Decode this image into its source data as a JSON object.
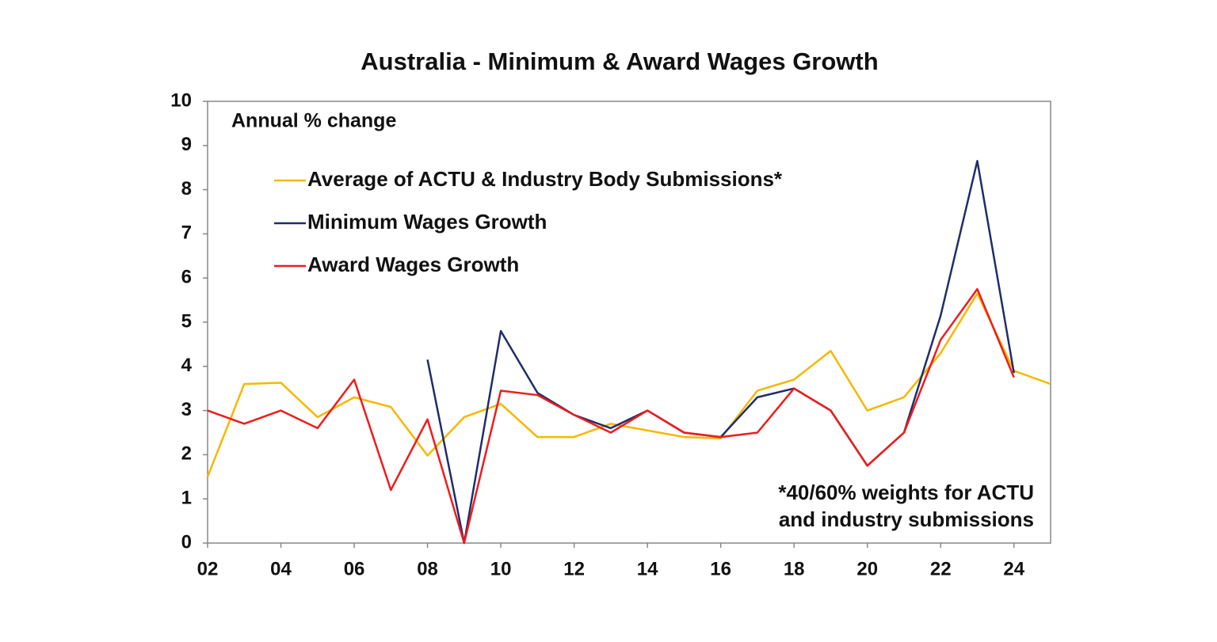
{
  "chart_data": {
    "type": "line",
    "title": "Australia - Minimum & Award Wages Growth",
    "ylabel": "Annual % change",
    "annotation": [
      "*40/60% weights for ACTU",
      "and industry submissions"
    ],
    "x": [
      2,
      3,
      4,
      5,
      6,
      7,
      8,
      9,
      10,
      11,
      12,
      13,
      14,
      15,
      16,
      17,
      18,
      19,
      20,
      21,
      22,
      23,
      24,
      25
    ],
    "series": [
      {
        "name": "Average of ACTU & Industry Body Submissions*",
        "color": "#f5b800",
        "values": [
          1.5,
          3.6,
          3.63,
          2.85,
          3.3,
          3.08,
          1.98,
          2.85,
          3.15,
          2.4,
          2.4,
          2.7,
          2.55,
          2.4,
          2.37,
          3.45,
          3.7,
          4.35,
          3.0,
          3.3,
          4.3,
          5.65,
          3.9,
          3.6
        ]
      },
      {
        "name": "Minimum Wages Growth",
        "color": "#1f2d6b",
        "values": [
          null,
          null,
          null,
          null,
          null,
          null,
          4.15,
          0,
          4.8,
          3.4,
          2.9,
          2.6,
          3.0,
          2.5,
          2.4,
          3.3,
          3.5,
          3.0,
          1.75,
          2.5,
          5.15,
          8.65,
          3.85,
          null
        ]
      },
      {
        "name": "Award Wages Growth",
        "color": "#ee1c1c",
        "values": [
          3.0,
          2.7,
          3.0,
          2.6,
          3.7,
          1.2,
          2.8,
          0,
          3.45,
          3.35,
          2.9,
          2.5,
          3.0,
          2.5,
          2.4,
          2.5,
          3.5,
          3.0,
          1.75,
          2.5,
          4.6,
          5.75,
          3.75,
          null
        ]
      }
    ],
    "xlim": [
      2,
      25
    ],
    "ylim": [
      0,
      10
    ],
    "xticks": [
      {
        "value": 2,
        "label": "02"
      },
      {
        "value": 4,
        "label": "04"
      },
      {
        "value": 6,
        "label": "06"
      },
      {
        "value": 8,
        "label": "08"
      },
      {
        "value": 10,
        "label": "10"
      },
      {
        "value": 12,
        "label": "12"
      },
      {
        "value": 14,
        "label": "14"
      },
      {
        "value": 16,
        "label": "16"
      },
      {
        "value": 18,
        "label": "18"
      },
      {
        "value": 20,
        "label": "20"
      },
      {
        "value": 22,
        "label": "22"
      },
      {
        "value": 24,
        "label": "24"
      }
    ],
    "yticks": [
      0,
      1,
      2,
      3,
      4,
      5,
      6,
      7,
      8,
      9,
      10
    ],
    "grid": false
  }
}
